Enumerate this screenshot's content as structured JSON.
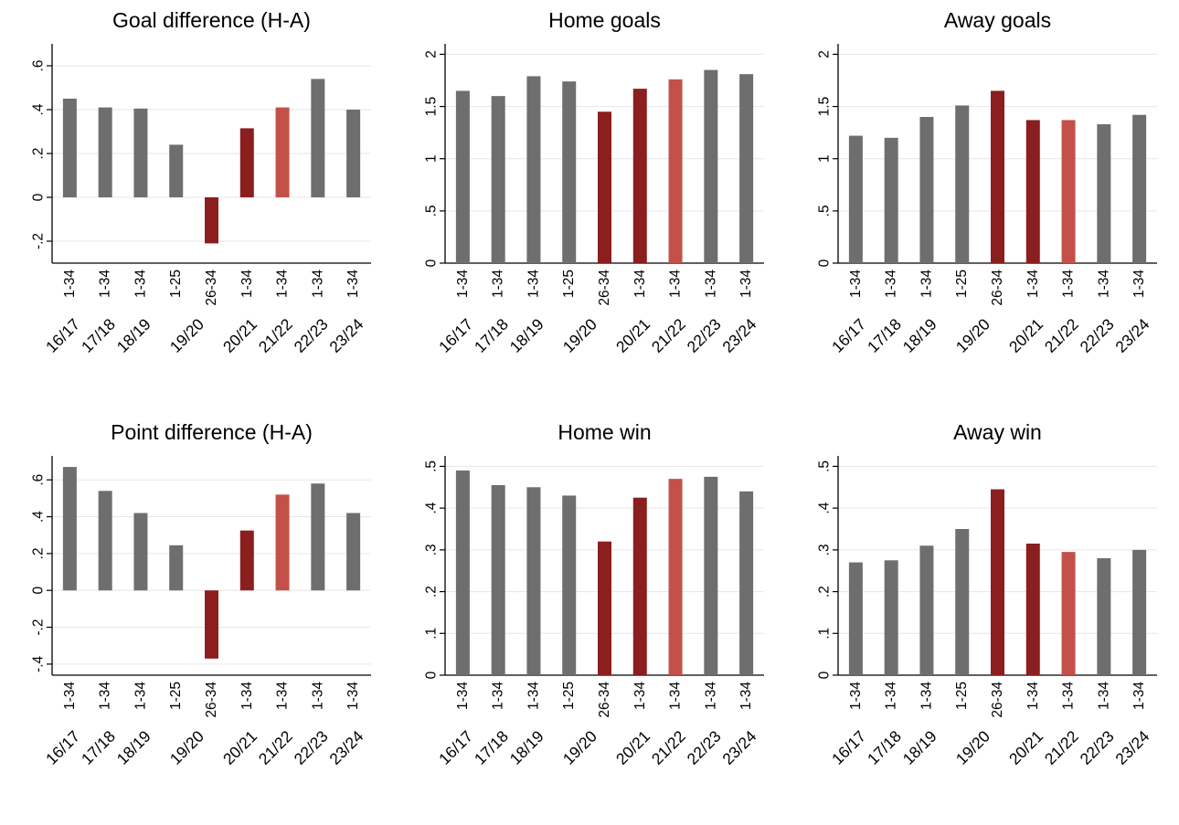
{
  "chart_data": {
    "type": "bar",
    "layout": {
      "rows": 2,
      "cols": 3,
      "grid": true,
      "legend": "none"
    },
    "x_period_labels": [
      "1-34",
      "1-34",
      "1-34",
      "1-25",
      "26-34",
      "1-34",
      "1-34",
      "1-34",
      "1-34"
    ],
    "season_labels": [
      "16/17",
      "17/18",
      "18/19",
      "19/20",
      "20/21",
      "21/22",
      "22/23",
      "23/24"
    ],
    "season_bar_map": [
      [
        0
      ],
      [
        1
      ],
      [
        2
      ],
      [
        3,
        4
      ],
      [
        5
      ],
      [
        6
      ],
      [
        7
      ],
      [
        8
      ]
    ],
    "bar_color_keys": [
      "gray",
      "gray",
      "gray",
      "gray",
      "dark_red",
      "dark_red",
      "light_red",
      "gray",
      "gray"
    ],
    "palette": {
      "gray": "#6e6e6e",
      "dark_red": "#8b1e1e",
      "light_red": "#c4504a",
      "grid": "#e6e6e6",
      "axis": "#000000",
      "background": "#ffffff"
    },
    "charts": [
      {
        "title": "Goal difference (H-A)",
        "ylim": [
          -0.3,
          0.7
        ],
        "yticks": [
          -0.2,
          0,
          0.2,
          0.4,
          0.6
        ],
        "ytick_labels": [
          "-.2",
          "0",
          ".2",
          ".4",
          ".6"
        ],
        "values": [
          0.45,
          0.41,
          0.405,
          0.24,
          -0.21,
          0.315,
          0.41,
          0.54,
          0.4
        ]
      },
      {
        "title": "Home goals",
        "ylim": [
          0,
          2.1
        ],
        "yticks": [
          0,
          0.5,
          1,
          1.5,
          2
        ],
        "ytick_labels": [
          "0",
          ".5",
          "1",
          "1.5",
          "2"
        ],
        "values": [
          1.65,
          1.6,
          1.79,
          1.74,
          1.45,
          1.67,
          1.76,
          1.85,
          1.81
        ]
      },
      {
        "title": "Away goals",
        "ylim": [
          0,
          2.1
        ],
        "yticks": [
          0,
          0.5,
          1,
          1.5,
          2
        ],
        "ytick_labels": [
          "0",
          ".5",
          "1",
          "1.5",
          "2"
        ],
        "values": [
          1.22,
          1.2,
          1.4,
          1.51,
          1.65,
          1.37,
          1.37,
          1.33,
          1.42
        ]
      },
      {
        "title": "Point difference (H-A)",
        "ylim": [
          -0.46,
          0.73
        ],
        "yticks": [
          -0.4,
          -0.2,
          0,
          0.2,
          0.4,
          0.6
        ],
        "ytick_labels": [
          "-.4",
          "-.2",
          "0",
          ".2",
          ".4",
          ".6"
        ],
        "values": [
          0.67,
          0.54,
          0.42,
          0.245,
          -0.37,
          0.325,
          0.52,
          0.58,
          0.42
        ]
      },
      {
        "title": "Home win",
        "ylim": [
          0,
          0.525
        ],
        "yticks": [
          0,
          0.1,
          0.2,
          0.3,
          0.4,
          0.5
        ],
        "ytick_labels": [
          "0",
          ".1",
          ".2",
          ".3",
          ".4",
          ".5"
        ],
        "values": [
          0.49,
          0.455,
          0.45,
          0.43,
          0.32,
          0.425,
          0.47,
          0.475,
          0.44
        ]
      },
      {
        "title": "Away win",
        "ylim": [
          0,
          0.525
        ],
        "yticks": [
          0,
          0.1,
          0.2,
          0.3,
          0.4,
          0.5
        ],
        "ytick_labels": [
          "0",
          ".1",
          ".2",
          ".3",
          ".4",
          ".5"
        ],
        "values": [
          0.27,
          0.275,
          0.31,
          0.35,
          0.445,
          0.315,
          0.295,
          0.28,
          0.3
        ]
      }
    ]
  }
}
